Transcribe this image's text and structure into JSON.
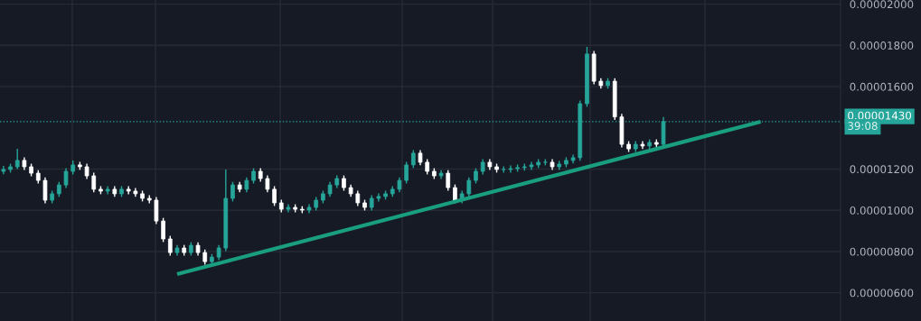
{
  "chart_data": {
    "type": "candlestick",
    "categories": [
      null,
      null,
      null,
      null,
      null,
      null,
      null,
      null,
      null,
      null,
      null,
      null,
      null,
      null,
      null,
      null,
      null,
      null,
      null,
      null,
      null,
      null,
      null,
      null,
      null,
      null,
      null,
      null,
      null,
      null,
      null,
      null,
      null,
      null,
      null,
      null,
      null,
      null,
      null,
      null,
      null,
      null,
      null,
      null,
      null,
      null,
      null,
      null,
      null,
      null,
      null,
      null,
      null,
      null,
      null,
      null,
      null,
      null,
      null,
      null,
      null,
      null,
      null,
      null,
      null,
      null,
      null,
      null,
      null,
      null,
      null,
      null,
      null,
      null,
      null,
      null,
      null,
      null,
      null,
      null,
      null,
      null,
      null,
      null,
      null,
      null,
      null,
      null,
      null,
      null,
      null,
      null,
      null,
      null,
      null,
      null,
      null,
      null,
      null,
      null,
      null,
      null,
      null,
      null,
      null,
      null,
      null,
      null,
      null,
      null,
      null,
      null,
      null,
      null,
      null,
      null,
      null,
      null,
      null,
      null,
      null
    ],
    "ohlc": [
      [
        1.189e-05,
        1.215e-05,
        1.175e-05,
        1.198e-05
      ],
      [
        1.198e-05,
        1.226e-05,
        1.183e-05,
        1.211e-05
      ],
      [
        1.211e-05,
        1.298e-05,
        1.2e-05,
        1.242e-05
      ],
      [
        1.242e-05,
        1.257e-05,
        1.196e-05,
        1.211e-05
      ],
      [
        1.211e-05,
        1.226e-05,
        1.165e-05,
        1.18e-05
      ],
      [
        1.18e-05,
        1.195e-05,
        1.13e-05,
        1.145e-05
      ],
      [
        1.145e-05,
        1.16e-05,
        1.034e-05,
        1.049e-05
      ],
      [
        1.049e-05,
        1.095e-05,
        1.034e-05,
        1.08e-05
      ],
      [
        1.08e-05,
        1.138e-05,
        1.065e-05,
        1.123e-05
      ],
      [
        1.123e-05,
        1.204e-05,
        1.108e-05,
        1.189e-05
      ],
      [
        1.189e-05,
        1.242e-05,
        1.174e-05,
        1.22e-05
      ],
      [
        1.22e-05,
        1.235e-05,
        1.196e-05,
        1.211e-05
      ],
      [
        1.211e-05,
        1.226e-05,
        1.152e-05,
        1.167e-05
      ],
      [
        1.167e-05,
        1.182e-05,
        1.087e-05,
        1.102e-05
      ],
      [
        1.102e-05,
        1.117e-05,
        1.078e-05,
        1.093e-05
      ],
      [
        1.093e-05,
        1.117e-05,
        1.078e-05,
        1.102e-05
      ],
      [
        1.102e-05,
        1.117e-05,
        1.065e-05,
        1.08e-05
      ],
      [
        1.08e-05,
        1.117e-05,
        1.065e-05,
        1.102e-05
      ],
      [
        1.102e-05,
        1.117e-05,
        1.078e-05,
        1.093e-05
      ],
      [
        1.093e-05,
        1.108e-05,
        1.065e-05,
        1.08e-05
      ],
      [
        1.08e-05,
        1.095e-05,
        1.043e-05,
        1.058e-05
      ],
      [
        1.058e-05,
        1.073e-05,
        1.034e-05,
        1.049e-05
      ],
      [
        1.049e-05,
        1.064e-05,
        9.33e-06,
        9.48e-06
      ],
      [
        9.48e-06,
        9.63e-06,
        8.46e-06,
        8.61e-06
      ],
      [
        8.61e-06,
        8.76e-06,
        7.8e-06,
        7.95e-06
      ],
      [
        7.95e-06,
        8.32e-06,
        7.8e-06,
        8.17e-06
      ],
      [
        8.17e-06,
        8.32e-06,
        7.8e-06,
        7.95e-06
      ],
      [
        7.95e-06,
        8.45e-06,
        7.8e-06,
        8.3e-06
      ],
      [
        8.3e-06,
        8.45e-06,
        7.8e-06,
        7.95e-06
      ],
      [
        7.95e-06,
        8.1e-06,
        7.36e-06,
        7.51e-06
      ],
      [
        7.51e-06,
        7.88e-06,
        7.36e-06,
        7.73e-06
      ],
      [
        7.73e-06,
        8.32e-06,
        7.58e-06,
        8.17e-06
      ],
      [
        8.17e-06,
        1.198e-05,
        8.02e-06,
        1.058e-05
      ],
      [
        1.058e-05,
        1.138e-05,
        1.043e-05,
        1.123e-05
      ],
      [
        1.123e-05,
        1.138e-05,
        1.087e-05,
        1.102e-05
      ],
      [
        1.102e-05,
        1.16e-05,
        1.087e-05,
        1.145e-05
      ],
      [
        1.145e-05,
        1.204e-05,
        1.13e-05,
        1.189e-05
      ],
      [
        1.189e-05,
        1.204e-05,
        1.139e-05,
        1.154e-05
      ],
      [
        1.154e-05,
        1.169e-05,
        1.087e-05,
        1.102e-05
      ],
      [
        1.102e-05,
        1.117e-05,
        1.021e-05,
        1.036e-05
      ],
      [
        1.036e-05,
        1.051e-05,
        9.9e-06,
        1.005e-05
      ],
      [
        1.005e-05,
        1.029e-05,
        9.9e-06,
        1.014e-05
      ],
      [
        1.014e-05,
        1.029e-05,
        9.9e-06,
        1.005e-05
      ],
      [
        1.005e-05,
        1.02e-05,
        9.86e-06,
        1.001e-05
      ],
      [
        1.001e-05,
        1.029e-05,
        9.86e-06,
        1.014e-05
      ],
      [
        1.014e-05,
        1.064e-05,
        9.99e-06,
        1.049e-05
      ],
      [
        1.049e-05,
        1.095e-05,
        1.034e-05,
        1.08e-05
      ],
      [
        1.08e-05,
        1.138e-05,
        1.065e-05,
        1.123e-05
      ],
      [
        1.123e-05,
        1.169e-05,
        1.108e-05,
        1.154e-05
      ],
      [
        1.154e-05,
        1.169e-05,
        1.095e-05,
        1.11e-05
      ],
      [
        1.11e-05,
        1.125e-05,
        1.065e-05,
        1.08e-05
      ],
      [
        1.08e-05,
        1.095e-05,
        1.021e-05,
        1.036e-05
      ],
      [
        1.036e-05,
        1.051e-05,
        9.99e-06,
        1.014e-05
      ],
      [
        1.014e-05,
        1.073e-05,
        9.99e-06,
        1.058e-05
      ],
      [
        1.058e-05,
        1.082e-05,
        1.043e-05,
        1.067e-05
      ],
      [
        1.067e-05,
        1.095e-05,
        1.052e-05,
        1.08e-05
      ],
      [
        1.08e-05,
        1.117e-05,
        1.065e-05,
        1.102e-05
      ],
      [
        1.102e-05,
        1.16e-05,
        1.087e-05,
        1.145e-05
      ],
      [
        1.145e-05,
        1.235e-05,
        1.13e-05,
        1.22e-05
      ],
      [
        1.22e-05,
        1.292e-05,
        1.205e-05,
        1.277e-05
      ],
      [
        1.277e-05,
        1.292e-05,
        1.218e-05,
        1.233e-05
      ],
      [
        1.233e-05,
        1.248e-05,
        1.174e-05,
        1.189e-05
      ],
      [
        1.189e-05,
        1.204e-05,
        1.152e-05,
        1.167e-05
      ],
      [
        1.167e-05,
        1.195e-05,
        1.152e-05,
        1.18e-05
      ],
      [
        1.18e-05,
        1.195e-05,
        1.095e-05,
        1.11e-05
      ],
      [
        1.11e-05,
        1.125e-05,
        1.034e-05,
        1.049e-05
      ],
      [
        1.049e-05,
        1.095e-05,
        1.034e-05,
        1.08e-05
      ],
      [
        1.08e-05,
        1.16e-05,
        1.065e-05,
        1.145e-05
      ],
      [
        1.145e-05,
        1.204e-05,
        1.13e-05,
        1.189e-05
      ],
      [
        1.189e-05,
        1.248e-05,
        1.174e-05,
        1.233e-05
      ],
      [
        1.233e-05,
        1.248e-05,
        1.196e-05,
        1.211e-05
      ],
      [
        1.211e-05,
        1.226e-05,
        1.183e-05,
        1.198e-05
      ],
      [
        1.198e-05,
        1.213e-05,
        1.183e-05,
        1.198e-05
      ],
      [
        1.198e-05,
        1.217e-05,
        1.183e-05,
        1.202e-05
      ],
      [
        1.202e-05,
        1.222e-05,
        1.187e-05,
        1.207e-05
      ],
      [
        1.207e-05,
        1.226e-05,
        1.192e-05,
        1.211e-05
      ],
      [
        1.211e-05,
        1.235e-05,
        1.196e-05,
        1.22e-05
      ],
      [
        1.22e-05,
        1.248e-05,
        1.205e-05,
        1.233e-05
      ],
      [
        1.233e-05,
        1.248e-05,
        1.218e-05,
        1.233e-05
      ],
      [
        1.233e-05,
        1.248e-05,
        1.196e-05,
        1.211e-05
      ],
      [
        1.211e-05,
        1.239e-05,
        1.196e-05,
        1.224e-05
      ],
      [
        1.224e-05,
        1.257e-05,
        1.209e-05,
        1.242e-05
      ],
      [
        1.242e-05,
        1.27e-05,
        1.227e-05,
        1.255e-05
      ],
      [
        1.255e-05,
        1.532e-05,
        1.24e-05,
        1.517e-05
      ],
      [
        1.517e-05,
        1.793e-05,
        1.502e-05,
        1.758e-05
      ],
      [
        1.758e-05,
        1.773e-05,
        1.611e-05,
        1.626e-05
      ],
      [
        1.626e-05,
        1.641e-05,
        1.59e-05,
        1.605e-05
      ],
      [
        1.605e-05,
        1.641e-05,
        1.59e-05,
        1.626e-05
      ],
      [
        1.626e-05,
        1.641e-05,
        1.438e-05,
        1.453e-05
      ],
      [
        1.453e-05,
        1.468e-05,
        1.305e-05,
        1.32e-05
      ],
      [
        1.32e-05,
        1.335e-05,
        1.283e-05,
        1.298e-05
      ],
      [
        1.298e-05,
        1.335e-05,
        1.283e-05,
        1.32e-05
      ],
      [
        1.32e-05,
        1.335e-05,
        1.297e-05,
        1.312e-05
      ],
      [
        1.312e-05,
        1.344e-05,
        1.297e-05,
        1.329e-05
      ],
      [
        1.329e-05,
        1.344e-05,
        1.305e-05,
        1.32e-05
      ],
      [
        1.32e-05,
        1.452e-05,
        1.305e-05,
        1.43e-05
      ],
      null,
      null,
      null,
      null,
      null,
      null,
      null,
      null,
      null,
      null,
      null,
      null,
      null,
      null,
      null,
      null,
      null,
      null,
      null,
      null,
      null,
      null,
      null,
      null,
      null
    ],
    "colors": [
      "#26a69a",
      "#26a69a",
      "#26a69a",
      "#ffffff",
      "#ffffff",
      "#ffffff",
      "#ffffff",
      "#26a69a",
      "#26a69a",
      "#26a69a",
      "#26a69a",
      "#ffffff",
      "#ffffff",
      "#ffffff",
      "#ffffff",
      "#26a69a",
      "#ffffff",
      "#26a69a",
      "#ffffff",
      "#ffffff",
      "#ffffff",
      "#ffffff",
      "#ffffff",
      "#ffffff",
      "#ffffff",
      "#26a69a",
      "#ffffff",
      "#26a69a",
      "#ffffff",
      "#ffffff",
      "#26a69a",
      "#26a69a",
      "#26a69a",
      "#26a69a",
      "#ffffff",
      "#26a69a",
      "#26a69a",
      "#ffffff",
      "#ffffff",
      "#ffffff",
      "#ffffff",
      "#26a69a",
      "#ffffff",
      "#ffffff",
      "#26a69a",
      "#26a69a",
      "#26a69a",
      "#26a69a",
      "#26a69a",
      "#ffffff",
      "#ffffff",
      "#ffffff",
      "#ffffff",
      "#26a69a",
      "#26a69a",
      "#26a69a",
      "#26a69a",
      "#26a69a",
      "#26a69a",
      "#26a69a",
      "#ffffff",
      "#ffffff",
      "#ffffff",
      "#26a69a",
      "#ffffff",
      "#ffffff",
      "#26a69a",
      "#26a69a",
      "#26a69a",
      "#26a69a",
      "#ffffff",
      "#ffffff",
      "#26a69a",
      "#26a69a",
      "#26a69a",
      "#26a69a",
      "#26a69a",
      "#26a69a",
      "#26a69a",
      "#ffffff",
      "#26a69a",
      "#26a69a",
      "#26a69a",
      "#26a69a",
      "#26a69a",
      "#ffffff",
      "#ffffff",
      "#26a69a",
      "#ffffff",
      "#ffffff",
      "#ffffff",
      "#26a69a",
      "#ffffff",
      "#26a69a",
      "#ffffff",
      "#26a69a",
      null,
      null,
      null,
      null,
      null,
      null,
      null,
      null,
      null,
      null,
      null,
      null,
      null,
      null,
      null,
      null,
      null,
      null,
      null,
      null,
      null,
      null,
      null,
      null,
      null
    ],
    "series": [
      {
        "type": "line",
        "color": "#1a9e80",
        "values": [
          null,
          null,
          null,
          null,
          null,
          null,
          null,
          null,
          null,
          null,
          null,
          null,
          null,
          null,
          null,
          null,
          null,
          null,
          null,
          null,
          null,
          null,
          null,
          null,
          null,
          6.9e-06,
          null,
          null,
          null,
          null,
          null,
          null,
          null,
          null,
          null,
          null,
          null,
          null,
          null,
          null,
          null,
          null,
          null,
          null,
          null,
          null,
          null,
          null,
          null,
          null,
          null,
          null,
          null,
          null,
          null,
          null,
          null,
          null,
          null,
          null,
          null,
          null,
          null,
          null,
          null,
          null,
          null,
          null,
          null,
          null,
          null,
          null,
          null,
          null,
          null,
          null,
          null,
          null,
          null,
          null,
          null,
          null,
          null,
          null,
          null,
          null,
          null,
          null,
          null,
          null,
          null,
          null,
          null,
          null,
          null,
          null,
          null,
          null,
          null,
          null,
          null,
          null,
          null,
          null,
          null,
          null,
          null,
          null,
          null,
          1.43e-05,
          null,
          null,
          null,
          null,
          null,
          null,
          null,
          null,
          null,
          null,
          null
        ]
      }
    ],
    "ylim": [
      4.63e-06,
      2.02e-05
    ],
    "yticks": [
      {
        "value": 6e-06,
        "label": "0.00000600"
      },
      {
        "value": 8e-06,
        "label": "0.00000800"
      },
      {
        "value": 1e-05,
        "label": "0.00001000"
      },
      {
        "value": 1.2e-05,
        "label": "0.00001200"
      },
      {
        "value": 1.6e-05,
        "label": "0.00001600"
      },
      {
        "value": 1.8e-05,
        "label": "0.00001800"
      },
      {
        "value": 2e-05,
        "label": "0.00002000"
      }
    ],
    "tick_labels": "y",
    "grid": "y",
    "ref_lines": [
      {
        "axis": "y",
        "value": 1.43e-05,
        "label": "0.00001430",
        "color": "#26a69a",
        "line_style": "dotted"
      }
    ],
    "annotations": [
      "39:08"
    ]
  }
}
